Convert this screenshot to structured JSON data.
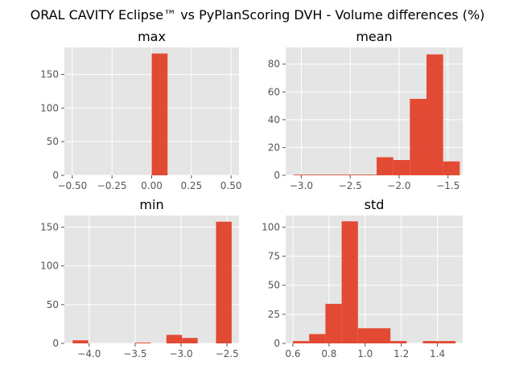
{
  "figure": {
    "title": "ORAL CAVITY Eclipse™ vs PyPlanScoring DVH - Volume differences (%)"
  },
  "colors": {
    "bar": "#e24a33",
    "background": "#e5e5e5",
    "grid": "#ffffff",
    "tick_text": "#555555"
  },
  "chart_data": [
    {
      "type": "bar",
      "title": "max",
      "xlim": [
        -0.55,
        0.55
      ],
      "ylim": [
        0,
        190
      ],
      "xticks": [
        -0.5,
        -0.25,
        0.0,
        0.25,
        0.5
      ],
      "xtick_labels": [
        "−0.50",
        "−0.25",
        "0.00",
        "0.25",
        "0.50"
      ],
      "yticks": [
        0,
        50,
        100,
        150
      ],
      "ytick_labels": [
        "0",
        "50",
        "100",
        "150"
      ],
      "bins": [
        [
          0.0,
          0.1,
          181
        ]
      ],
      "grid": true
    },
    {
      "type": "bar",
      "title": "mean",
      "xlim": [
        -3.16,
        -1.35
      ],
      "ylim": [
        0,
        92
      ],
      "xticks": [
        -3.0,
        -2.5,
        -2.0,
        -1.5
      ],
      "xtick_labels": [
        "−3.0",
        "−2.5",
        "−2.0",
        "−1.5"
      ],
      "yticks": [
        0,
        20,
        40,
        60,
        80
      ],
      "ytick_labels": [
        "0",
        "20",
        "40",
        "60",
        "80"
      ],
      "bins": [
        [
          -3.08,
          -2.91,
          0.5
        ],
        [
          -2.91,
          -2.74,
          0.5
        ],
        [
          -2.74,
          -2.57,
          0.5
        ],
        [
          -2.57,
          -2.4,
          0.5
        ],
        [
          -2.4,
          -2.23,
          0.5
        ],
        [
          -2.23,
          -2.06,
          13
        ],
        [
          -2.06,
          -1.89,
          11
        ],
        [
          -1.89,
          -1.72,
          55
        ],
        [
          -1.72,
          -1.55,
          87
        ],
        [
          -1.55,
          -1.38,
          10
        ]
      ],
      "grid": true
    },
    {
      "type": "bar",
      "title": "min",
      "xlim": [
        -4.27,
        -2.37
      ],
      "ylim": [
        0,
        165
      ],
      "xticks": [
        -4.0,
        -3.5,
        -3.0,
        -2.5
      ],
      "xtick_labels": [
        "−4.0",
        "−3.5",
        "−3.0",
        "−2.5"
      ],
      "yticks": [
        0,
        50,
        100,
        150
      ],
      "ytick_labels": [
        "0",
        "50",
        "100",
        "150"
      ],
      "bins": [
        [
          -4.18,
          -4.01,
          4
        ],
        [
          -3.5,
          -3.33,
          1
        ],
        [
          -3.16,
          -2.99,
          11
        ],
        [
          -2.99,
          -2.82,
          7
        ],
        [
          -2.62,
          -2.45,
          157
        ]
      ],
      "grid": true
    },
    {
      "type": "bar",
      "title": "std",
      "xlim": [
        0.56,
        1.54
      ],
      "ylim": [
        0,
        110
      ],
      "xticks": [
        0.6,
        0.8,
        1.0,
        1.2,
        1.4
      ],
      "xtick_labels": [
        "0.6",
        "0.8",
        "1.0",
        "1.2",
        "1.4"
      ],
      "yticks": [
        0,
        25,
        50,
        75,
        100
      ],
      "ytick_labels": [
        "0",
        "25",
        "50",
        "75",
        "100"
      ],
      "bins": [
        [
          0.6,
          0.69,
          2
        ],
        [
          0.69,
          0.78,
          8
        ],
        [
          0.78,
          0.87,
          34
        ],
        [
          0.87,
          0.96,
          105
        ],
        [
          0.96,
          1.05,
          13
        ],
        [
          1.05,
          1.14,
          13
        ],
        [
          1.14,
          1.23,
          2
        ],
        [
          1.32,
          1.41,
          2
        ],
        [
          1.41,
          1.5,
          2
        ]
      ],
      "grid": true
    }
  ]
}
